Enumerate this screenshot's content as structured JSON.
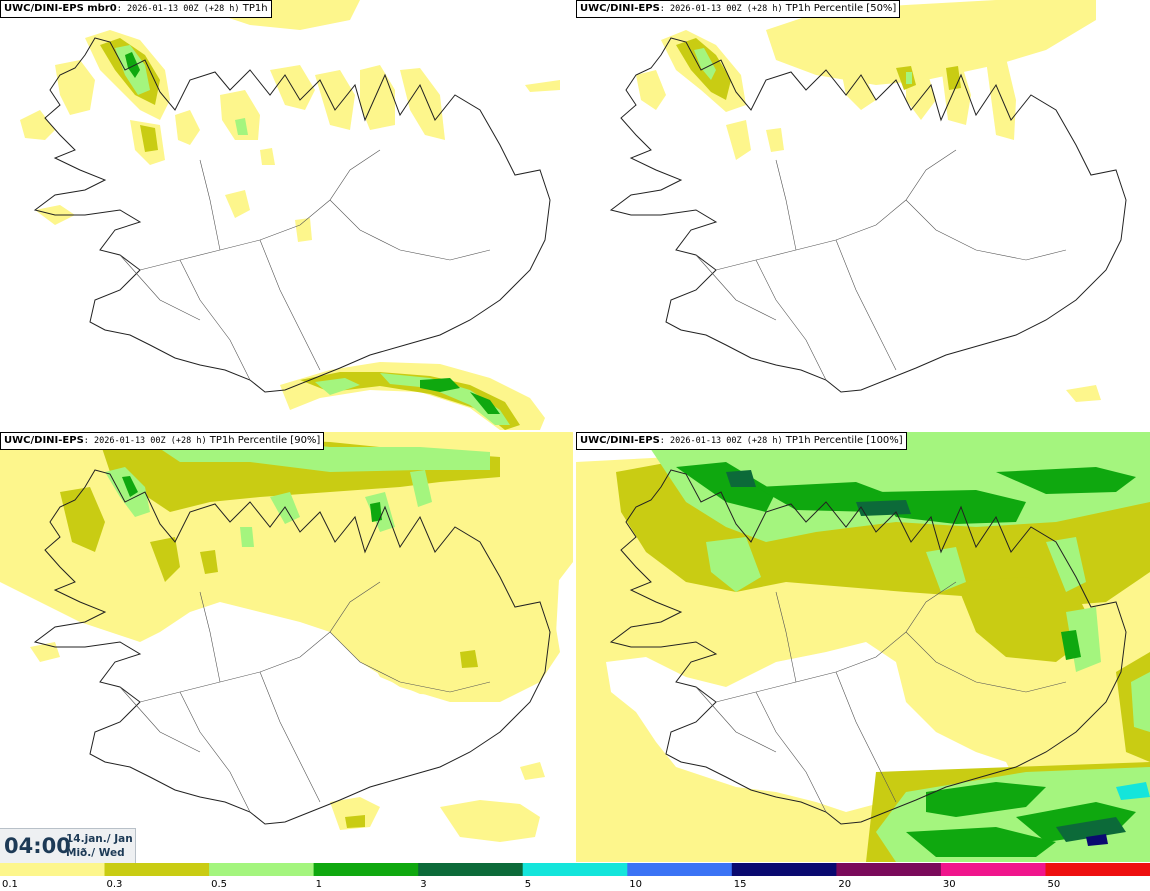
{
  "panels": [
    {
      "prefix": "UWC/DINI-EPS mbr0",
      "info": ": 2026-01-13 00Z (+28 h)",
      "var": " TP1h"
    },
    {
      "prefix": "UWC/DINI-EPS",
      "info": ": 2026-01-13 00Z (+28 h)",
      "var": " TP1h Percentile [50%]"
    },
    {
      "prefix": "UWC/DINI-EPS",
      "info": ": 2026-01-13 00Z (+28 h)",
      "var": " TP1h Percentile [90%]"
    },
    {
      "prefix": "UWC/DINI-EPS",
      "info": ": 2026-01-13 00Z (+28 h)",
      "var": " TP1h Percentile [100%]"
    }
  ],
  "time": {
    "clock": "04:00",
    "date": "14.jan./ Jan",
    "weekday": "Mið./ Wed"
  },
  "legend": {
    "colors": [
      "#fdf68c",
      "#c9cc13",
      "#a4f57e",
      "#0fa80f",
      "#0c6a39",
      "#14e5db",
      "#3b73f5",
      "#0a0a70",
      "#7a0a5a",
      "#f0158c",
      "#ee1010"
    ],
    "labels": [
      "0.1",
      "0.3",
      "0.5",
      "1",
      "3",
      "5",
      "10",
      "15",
      "20",
      "30",
      "50"
    ]
  }
}
